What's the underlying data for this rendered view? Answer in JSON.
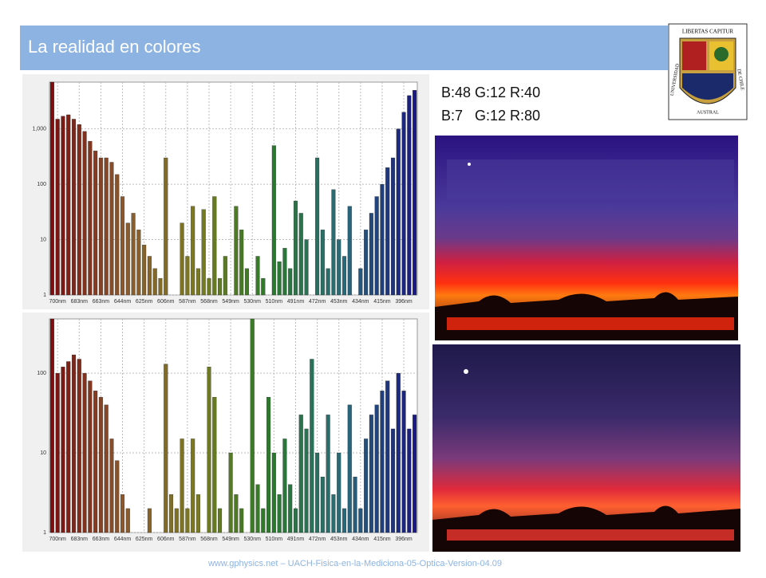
{
  "header": {
    "title": "La realidad en colores"
  },
  "logo": {
    "motto": "LIBERTAS CAPITUR",
    "name_left": "UNIVERSIDAD",
    "name_bottom": "AUSTRAL",
    "name_right": "DE CHILE"
  },
  "color_readings": [
    "B:48 G:12 R:40",
    "B:7   G:12 R:80"
  ],
  "footer": "www.gphysics.net – UACH-Fisica-en-la-Mediciona-05-Optica-Version-04.09",
  "chart_data": [
    {
      "type": "bar",
      "yscale": "log",
      "grid": true,
      "color_stops": [
        "#7a1010",
        "#8a5a30",
        "#7a7a20",
        "#2a7a2a",
        "#2a6a7a",
        "#1a1a80"
      ],
      "categories": [
        null,
        "700nm",
        null,
        null,
        null,
        "683nm",
        null,
        null,
        null,
        "663nm",
        null,
        null,
        null,
        "644nm",
        null,
        null,
        null,
        "625nm",
        null,
        null,
        null,
        "606nm",
        null,
        null,
        null,
        "587nm",
        null,
        null,
        null,
        "568nm",
        null,
        null,
        null,
        "549nm",
        null,
        null,
        null,
        "530nm",
        null,
        null,
        null,
        "510nm",
        null,
        null,
        null,
        "491nm",
        null,
        null,
        null,
        "472nm",
        null,
        null,
        null,
        "453nm",
        null,
        null,
        null,
        "434nm",
        null,
        null,
        null,
        "415nm",
        null,
        null,
        null,
        "396nm",
        null,
        null
      ],
      "values": [
        7000,
        1500,
        1700,
        1800,
        1500,
        1200,
        900,
        600,
        400,
        300,
        300,
        250,
        150,
        60,
        20,
        30,
        15,
        8,
        5,
        3,
        2,
        300,
        1,
        1,
        20,
        5,
        40,
        3,
        35,
        2,
        60,
        2,
        5,
        1,
        40,
        15,
        3,
        1,
        5,
        2,
        1,
        500,
        4,
        7,
        3,
        50,
        30,
        10,
        1,
        300,
        15,
        3,
        80,
        10,
        5,
        40,
        1,
        3,
        15,
        30,
        60,
        100,
        200,
        300,
        1000,
        2000,
        4000,
        5000
      ],
      "ylim": [
        1,
        7000
      ],
      "yticks": [
        1,
        10,
        100,
        {
          "value": 1000,
          "label": "1,000"
        }
      ]
    },
    {
      "type": "bar",
      "yscale": "log",
      "grid": true,
      "color_stops": [
        "#7a1010",
        "#8a5a30",
        "#7a7a20",
        "#2a7a2a",
        "#2a6a7a",
        "#1a1a80"
      ],
      "categories": [
        null,
        "700nm",
        null,
        null,
        null,
        "683nm",
        null,
        null,
        null,
        "663nm",
        null,
        null,
        null,
        "644nm",
        null,
        null,
        null,
        "625nm",
        null,
        null,
        null,
        "606nm",
        null,
        null,
        null,
        "587nm",
        null,
        null,
        null,
        "568nm",
        null,
        null,
        null,
        "549nm",
        null,
        null,
        null,
        "530nm",
        null,
        null,
        null,
        "510nm",
        null,
        null,
        null,
        "491nm",
        null,
        null,
        null,
        "472nm",
        null,
        null,
        null,
        "453nm",
        null,
        null,
        null,
        "434nm",
        null,
        null,
        null,
        "415nm",
        null,
        null,
        null,
        "396nm",
        null,
        null
      ],
      "values": [
        480,
        100,
        120,
        140,
        170,
        150,
        100,
        80,
        60,
        50,
        40,
        15,
        8,
        3,
        2,
        1,
        1,
        1,
        2,
        1,
        1,
        130,
        3,
        2,
        15,
        2,
        15,
        3,
        1,
        120,
        50,
        2,
        1,
        10,
        3,
        2,
        1,
        480,
        4,
        2,
        50,
        10,
        3,
        15,
        4,
        2,
        30,
        20,
        150,
        10,
        5,
        30,
        3,
        10,
        2,
        40,
        5,
        2,
        15,
        30,
        40,
        60,
        80,
        20,
        100,
        60,
        20,
        30
      ],
      "ylim": [
        1,
        480
      ],
      "yticks": [
        1,
        10,
        100
      ]
    }
  ]
}
